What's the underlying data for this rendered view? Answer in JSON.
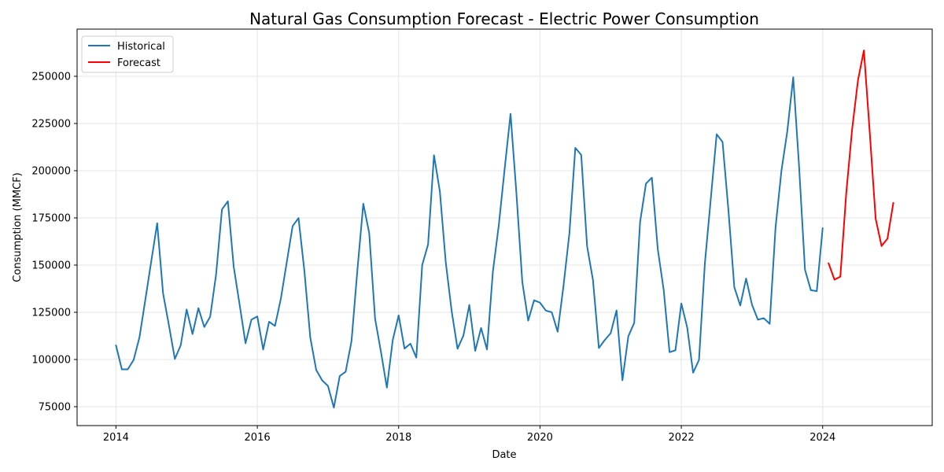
{
  "chart_data": {
    "type": "line",
    "title": "Natural Gas Consumption Forecast - Electric Power Consumption",
    "xlabel": "Date",
    "ylabel": "Consumption (MMCF)",
    "xlim": [
      2013.45,
      2025.55
    ],
    "ylim": [
      65000,
      275000
    ],
    "x_ticks": [
      2014,
      2016,
      2018,
      2020,
      2022,
      2024
    ],
    "y_ticks": [
      75000,
      100000,
      125000,
      150000,
      175000,
      200000,
      225000,
      250000
    ],
    "grid": true,
    "legend_position": "top-left",
    "series": [
      {
        "name": "Historical",
        "color": "#1f77b4",
        "start_year": 2014,
        "start_month": 1,
        "values": [
          107500,
          94800,
          94800,
          99800,
          111900,
          131900,
          152200,
          172200,
          135000,
          118000,
          100300,
          107600,
          126500,
          113500,
          127200,
          117200,
          122700,
          145000,
          179500,
          183800,
          149000,
          129000,
          108600,
          121100,
          122800,
          105300,
          120000,
          117800,
          132200,
          151500,
          170700,
          174900,
          146700,
          111600,
          94500,
          89000,
          86000,
          74500,
          91300,
          93500,
          109800,
          147500,
          182500,
          167000,
          121600,
          104000,
          85100,
          110300,
          123400,
          105800,
          108400,
          101000,
          150000,
          161000,
          208200,
          189000,
          151500,
          125700,
          105700,
          112700,
          128900,
          104600,
          116700,
          105300,
          146500,
          171000,
          201000,
          230100,
          188000,
          141000,
          120600,
          131400,
          130100,
          125900,
          125000,
          114700,
          139200,
          167000,
          212100,
          208400,
          160000,
          142000,
          106100,
          110300,
          113900,
          126000,
          89000,
          112300,
          119400,
          172900,
          193200,
          196300,
          158500,
          137000,
          103900,
          104900,
          129700,
          117000,
          93000,
          99800,
          151000,
          185000,
          219300,
          215200,
          179000,
          138300,
          128600,
          142900,
          129000,
          121100,
          121900,
          118900,
          170000,
          200000,
          221000,
          249500,
          202000,
          147500,
          136700,
          136200,
          169600
        ]
      },
      {
        "name": "Forecast",
        "color": "#ff0000",
        "start_year": 2024,
        "start_month": 2,
        "values": [
          151000,
          142300,
          143900,
          188000,
          222000,
          248000,
          263700,
          220000,
          174500,
          160100,
          164000,
          183000
        ]
      }
    ]
  }
}
